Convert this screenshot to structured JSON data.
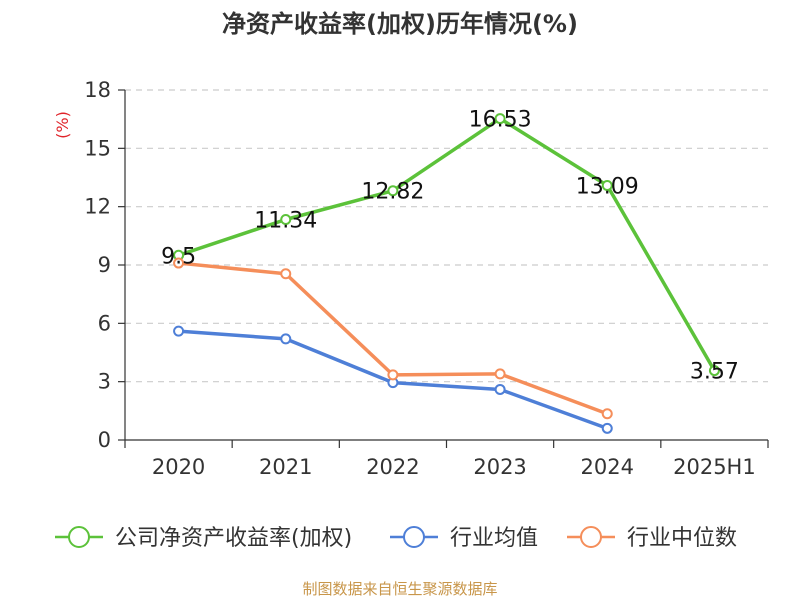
{
  "chart_data": {
    "type": "line",
    "title": "净资产收益率(加权)历年情况(%)",
    "unit_label": "(%)",
    "categories": [
      "2020",
      "2021",
      "2022",
      "2023",
      "2024",
      "2025H1"
    ],
    "ylim": [
      0,
      18
    ],
    "yticks": [
      0,
      3,
      6,
      9,
      12,
      15,
      18
    ],
    "grid": true,
    "legend_position": "bottom",
    "series": [
      {
        "name": "公司净资产收益率(加权)",
        "color": "#5cc23a",
        "values": [
          9.5,
          11.34,
          12.82,
          16.53,
          13.09,
          3.57
        ],
        "labels": [
          "9.5",
          "11.34",
          "12.82",
          "16.53",
          "13.09",
          "3.57"
        ]
      },
      {
        "name": "行业均值",
        "color": "#4e7fd7",
        "values": [
          5.6,
          5.2,
          2.95,
          2.6,
          0.6,
          null
        ]
      },
      {
        "name": "行业中位数",
        "color": "#f58e5a",
        "values": [
          9.1,
          8.55,
          3.35,
          3.4,
          1.35,
          null
        ]
      }
    ]
  },
  "source_text": "制图数据来自恒生聚源数据库"
}
